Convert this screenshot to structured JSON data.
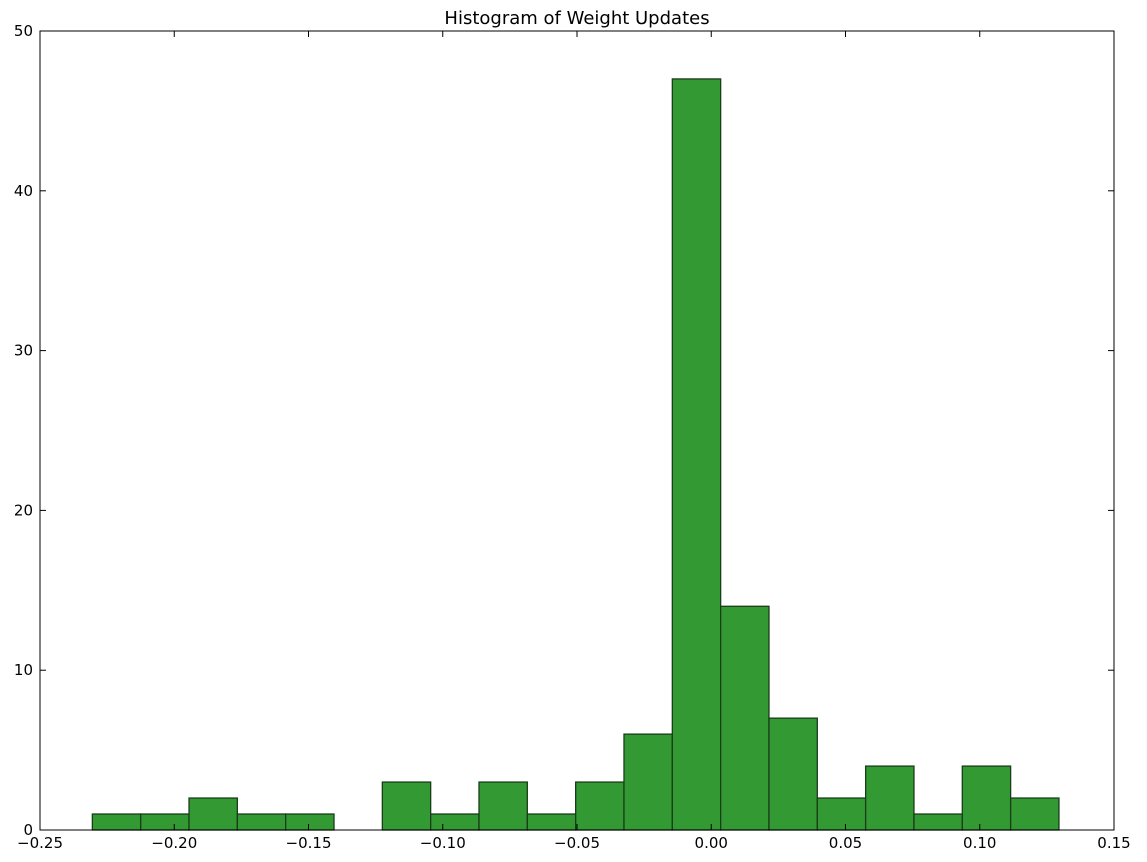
{
  "chart_data": {
    "type": "bar",
    "title": "Histogram of Weight Updates",
    "xlabel": "",
    "ylabel": "",
    "xlim": [
      -0.25,
      0.15
    ],
    "ylim": [
      0,
      50
    ],
    "x_ticks": [
      -0.25,
      -0.2,
      -0.15,
      -0.1,
      -0.05,
      0.0,
      0.05,
      0.1,
      0.15
    ],
    "x_tick_labels": [
      "−0.25",
      "−0.20",
      "−0.15",
      "−0.10",
      "−0.05",
      "0.00",
      "0.05",
      "0.10",
      "0.15"
    ],
    "y_ticks": [
      0,
      10,
      20,
      30,
      40,
      50
    ],
    "y_tick_labels": [
      "0",
      "10",
      "20",
      "30",
      "40",
      "50"
    ],
    "bin_edges": [
      -0.2305,
      -0.2125,
      -0.1945,
      -0.1765,
      -0.1585,
      -0.1405,
      -0.1225,
      -0.1045,
      -0.0865,
      -0.0685,
      -0.0505,
      -0.0325,
      -0.0145,
      0.0035,
      0.0215,
      0.0395,
      0.0575,
      0.0755,
      0.0935,
      0.1115,
      0.1295
    ],
    "values": [
      1,
      1,
      2,
      1,
      1,
      0,
      3,
      1,
      3,
      1,
      3,
      6,
      47,
      14,
      7,
      2,
      4,
      1,
      4,
      2
    ],
    "bar_color": "#339933",
    "edge_color": "#1a3d1a",
    "grid": false,
    "legend": "none"
  }
}
